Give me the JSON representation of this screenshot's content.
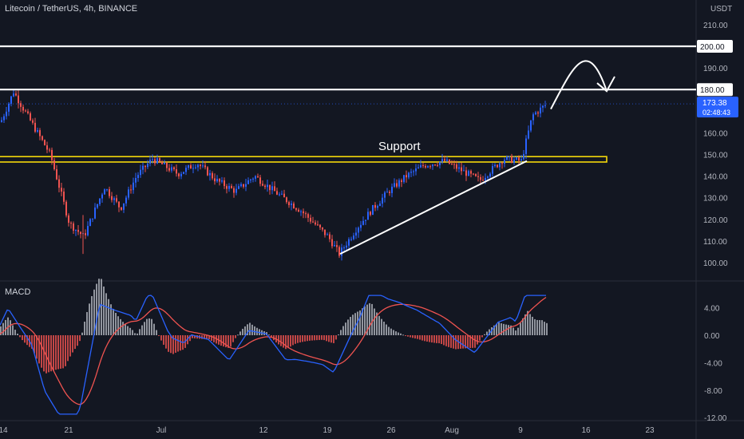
{
  "header": {
    "title": "Litecoin / TetherUS, 4h, BINANCE",
    "unit": "USDT",
    "indicator": "MACD"
  },
  "colors": {
    "background": "#131722",
    "up": "#2962ff",
    "down": "#ef5350",
    "support_zone": "#f5d90a",
    "level_line": "#ffffff",
    "last_price": "#2962ff",
    "macd_line": "#2962ff",
    "signal_line": "#ef5350"
  },
  "chart_data": [
    {
      "type": "candlestick",
      "price_axis": [
        110,
        120,
        130,
        140,
        150,
        160,
        170,
        180,
        190,
        200,
        210
      ],
      "price_axis_visible_labels": [
        "100.00",
        "110.00",
        "120.00",
        "130.00",
        "140.00",
        "150.00",
        "160.00",
        "170.00",
        "190.00",
        "210.00"
      ],
      "x_tick_labels": [
        "14",
        "21",
        "Jul",
        "12",
        "19",
        "26",
        "Aug",
        "9",
        "16",
        "23"
      ],
      "ylim": [
        96,
        221
      ],
      "horizontal_levels": [
        {
          "label": "200.00",
          "value": 200
        },
        {
          "label": "180.00",
          "value": 180
        }
      ],
      "last_price": {
        "value": "173.38",
        "countdown": "02:48:43"
      },
      "support_zone": {
        "label": "Support",
        "low": 146.5,
        "high": 149
      },
      "trendline": {
        "from_label": "19",
        "from_price": 104,
        "to_label": "9",
        "to_price": 147
      },
      "projection": "up to 200.00 then back to 180.00",
      "close_series": [
        {
          "x": "14",
          "close": 165
        },
        {
          "x": "14+",
          "close": 179
        },
        {
          "x": "16",
          "close": 170
        },
        {
          "x": "18",
          "close": 160
        },
        {
          "x": "20",
          "close": 150
        },
        {
          "x": "21",
          "close": 118
        },
        {
          "x": "22",
          "close": 112
        },
        {
          "x": "24",
          "close": 135
        },
        {
          "x": "26",
          "close": 125
        },
        {
          "x": "28",
          "close": 140
        },
        {
          "x": "Jul",
          "close": 148
        },
        {
          "x": "3",
          "close": 141
        },
        {
          "x": "5",
          "close": 146
        },
        {
          "x": "7",
          "close": 138
        },
        {
          "x": "9",
          "close": 133
        },
        {
          "x": "12",
          "close": 140
        },
        {
          "x": "14",
          "close": 132
        },
        {
          "x": "16",
          "close": 124
        },
        {
          "x": "19",
          "close": 112
        },
        {
          "x": "20",
          "close": 104
        },
        {
          "x": "22",
          "close": 116
        },
        {
          "x": "24",
          "close": 125
        },
        {
          "x": "26",
          "close": 133
        },
        {
          "x": "28",
          "close": 140
        },
        {
          "x": "30",
          "close": 145
        },
        {
          "x": "Aug",
          "close": 147
        },
        {
          "x": "3",
          "close": 142
        },
        {
          "x": "5",
          "close": 138
        },
        {
          "x": "7",
          "close": 148
        },
        {
          "x": "9",
          "close": 147
        },
        {
          "x": "10",
          "close": 168
        },
        {
          "x": "11",
          "close": 173.38
        }
      ]
    },
    {
      "type": "macd",
      "name": "MACD",
      "axis_labels": [
        "4.00",
        "0.00",
        "-4.00",
        "-8.00",
        "-12.00"
      ],
      "ylim": [
        -12.5,
        7
      ]
    }
  ]
}
